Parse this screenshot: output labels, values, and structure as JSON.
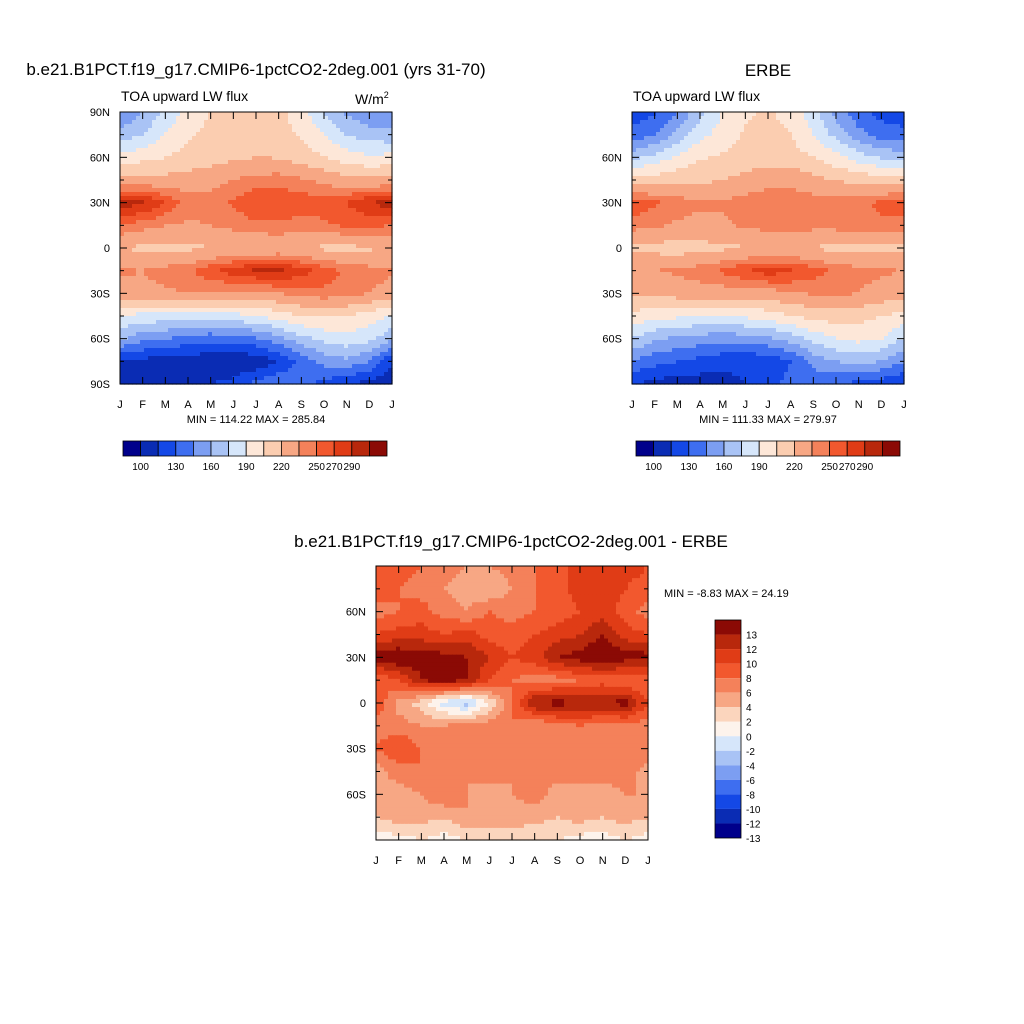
{
  "colors": {
    "abs_palette": [
      "#00008b",
      "#0a2cb4",
      "#1448e6",
      "#3e6ef0",
      "#7c9ef2",
      "#a9c3f5",
      "#d6e6fa",
      "#fde7d8",
      "#fbcdb0",
      "#f7a784",
      "#f4815a",
      "#f2582e",
      "#e03c16",
      "#b8280c",
      "#8b0a05"
    ],
    "diff_palette": [
      "#00008b",
      "#0a2cb4",
      "#1448e6",
      "#3e6ef0",
      "#7c9ef2",
      "#a9c3f5",
      "#d6e6fa",
      "#fdf3ec",
      "#fbd5bd",
      "#f7a784",
      "#f4815a",
      "#f2582e",
      "#e03c16",
      "#b8280c",
      "#8b0a05"
    ]
  },
  "panels": {
    "model": {
      "title": "b.e21.B1PCT.f19_g17.CMIP6-1pctCO2-2deg.001 (yrs 31-70)",
      "left_label": "TOA upward LW flux",
      "units_main": "W/m",
      "units_sup": "2",
      "stats": "MIN = 114.22 MAX = 285.84"
    },
    "obs": {
      "title": "ERBE",
      "left_label": "TOA upward LW flux",
      "stats": "MIN = 111.33 MAX = 279.97"
    },
    "diff": {
      "title": "b.e21.B1PCT.f19_g17.CMIP6-1pctCO2-2deg.001 - ERBE",
      "stats": "MIN =  -8.83 MAX =  24.19"
    }
  },
  "chart_data": [
    {
      "type": "heatmap",
      "title": "b.e21.B1PCT.f19_g17.CMIP6-1pctCO2-2deg.001 (yrs 31-70)",
      "variable": "TOA upward LW flux",
      "units": "W/m2",
      "x_ticks": [
        "J",
        "F",
        "M",
        "A",
        "M",
        "J",
        "J",
        "A",
        "S",
        "O",
        "N",
        "D",
        "J"
      ],
      "y_ticks": [
        "90N",
        "60N",
        "30N",
        "0",
        "30S",
        "60S",
        "90S"
      ],
      "ylim": [
        -90,
        90
      ],
      "min": 114.22,
      "max": 285.84,
      "colorbar_levels": [
        100,
        115,
        130,
        145,
        160,
        175,
        190,
        205,
        220,
        235,
        250,
        260,
        270,
        280,
        290
      ],
      "colorbar_labels": [
        "100",
        "130",
        "160",
        "190",
        "220",
        "250",
        "270",
        "290"
      ],
      "field": {
        "lat": [
          -90,
          -75,
          -60,
          -45,
          -30,
          -15,
          0,
          15,
          30,
          45,
          60,
          75,
          90
        ],
        "rows": [
          [
            120,
            116,
            120,
            125,
            130,
            135,
            150,
            158,
            150,
            140,
            130,
            125,
            120
          ],
          [
            130,
            125,
            122,
            120,
            118,
            116,
            118,
            130,
            150,
            165,
            172,
            160,
            130
          ],
          [
            178,
            165,
            160,
            155,
            150,
            152,
            158,
            170,
            185,
            195,
            200,
            195,
            178
          ],
          [
            205,
            200,
            200,
            198,
            198,
            200,
            205,
            212,
            220,
            222,
            220,
            212,
            205
          ],
          [
            245,
            246,
            248,
            250,
            248,
            246,
            246,
            250,
            255,
            258,
            255,
            250,
            245
          ],
          [
            252,
            250,
            255,
            258,
            268,
            276,
            282,
            284,
            275,
            265,
            258,
            254,
            252
          ],
          [
            235,
            232,
            230,
            232,
            234,
            236,
            236,
            238,
            236,
            232,
            232,
            233,
            235
          ],
          [
            260,
            255,
            250,
            248,
            250,
            254,
            258,
            258,
            256,
            258,
            262,
            262,
            260
          ],
          [
            286,
            282,
            270,
            255,
            255,
            262,
            268,
            268,
            266,
            265,
            270,
            280,
            286
          ],
          [
            238,
            240,
            240,
            242,
            245,
            250,
            255,
            256,
            252,
            246,
            240,
            238,
            238
          ],
          [
            210,
            215,
            220,
            225,
            228,
            232,
            235,
            234,
            228,
            220,
            212,
            208,
            210
          ],
          [
            180,
            190,
            205,
            218,
            225,
            230,
            230,
            228,
            218,
            205,
            190,
            182,
            180
          ],
          [
            160,
            175,
            195,
            210,
            220,
            228,
            230,
            225,
            210,
            190,
            172,
            162,
            160
          ]
        ]
      }
    },
    {
      "type": "heatmap",
      "title": "ERBE",
      "variable": "TOA upward LW flux",
      "units": "W/m2",
      "x_ticks": [
        "J",
        "F",
        "M",
        "A",
        "M",
        "J",
        "J",
        "A",
        "S",
        "O",
        "N",
        "D",
        "J"
      ],
      "y_ticks": [
        "60N",
        "30N",
        "0",
        "30S",
        "60S"
      ],
      "ylim": [
        -90,
        90
      ],
      "min": 111.33,
      "max": 279.97,
      "colorbar_levels": [
        100,
        115,
        130,
        145,
        160,
        175,
        190,
        205,
        220,
        235,
        250,
        260,
        270,
        280,
        290
      ],
      "colorbar_labels": [
        "100",
        "130",
        "160",
        "190",
        "220",
        "250",
        "270",
        "290"
      ],
      "field": {
        "lat": [
          -90,
          -75,
          -60,
          -45,
          -30,
          -15,
          0,
          15,
          30,
          45,
          60,
          75,
          90
        ],
        "rows": [
          [
            130,
            125,
            122,
            122,
            125,
            130,
            140,
            150,
            150,
            145,
            140,
            135,
            130
          ],
          [
            160,
            150,
            145,
            140,
            135,
            132,
            135,
            145,
            165,
            175,
            180,
            175,
            160
          ],
          [
            190,
            178,
            172,
            168,
            165,
            168,
            172,
            182,
            195,
            205,
            210,
            205,
            190
          ],
          [
            215,
            210,
            208,
            206,
            206,
            208,
            212,
            220,
            225,
            228,
            226,
            220,
            215
          ],
          [
            240,
            240,
            242,
            244,
            244,
            244,
            245,
            248,
            252,
            252,
            250,
            245,
            240
          ],
          [
            250,
            250,
            252,
            256,
            262,
            270,
            275,
            272,
            265,
            258,
            254,
            252,
            250
          ],
          [
            232,
            230,
            228,
            230,
            232,
            234,
            235,
            236,
            234,
            230,
            230,
            231,
            232
          ],
          [
            255,
            252,
            248,
            246,
            248,
            252,
            255,
            256,
            254,
            255,
            258,
            258,
            255
          ],
          [
            268,
            262,
            256,
            252,
            252,
            255,
            258,
            258,
            256,
            256,
            258,
            262,
            268
          ],
          [
            228,
            228,
            230,
            232,
            235,
            240,
            245,
            246,
            240,
            234,
            230,
            228,
            228
          ],
          [
            185,
            195,
            208,
            218,
            222,
            226,
            228,
            226,
            220,
            210,
            198,
            188,
            185
          ],
          [
            150,
            160,
            180,
            200,
            212,
            222,
            225,
            220,
            205,
            185,
            165,
            152,
            150
          ],
          [
            135,
            142,
            160,
            185,
            205,
            218,
            222,
            215,
            195,
            170,
            150,
            140,
            135
          ]
        ]
      }
    },
    {
      "type": "heatmap",
      "title": "b.e21.B1PCT.f19_g17.CMIP6-1pctCO2-2deg.001 - ERBE",
      "units": "W/m2",
      "x_ticks": [
        "J",
        "F",
        "M",
        "A",
        "M",
        "J",
        "J",
        "A",
        "S",
        "O",
        "N",
        "D",
        "J"
      ],
      "y_ticks": [
        "60N",
        "30N",
        "0",
        "30S",
        "60S"
      ],
      "ylim": [
        -90,
        90
      ],
      "min": -8.83,
      "max": 24.19,
      "colorbar_levels": [
        -14,
        -13,
        -12,
        -10,
        -8,
        -6,
        -4,
        -2,
        0,
        2,
        4,
        6,
        8,
        10,
        12,
        13,
        14
      ],
      "colorbar_labels": [
        "13",
        "12",
        "10",
        "8",
        "6",
        "4",
        "2",
        "0",
        "-2",
        "-4",
        "-6",
        "-8",
        "-10",
        "-12",
        "-13"
      ],
      "field": {
        "lat": [
          -90,
          -75,
          -60,
          -45,
          -30,
          -15,
          0,
          15,
          30,
          45,
          60,
          75,
          90
        ],
        "rows": [
          [
            -1,
            -1,
            0,
            -1,
            0,
            1,
            1,
            0,
            0,
            -1,
            -1,
            0,
            -1
          ],
          [
            2,
            3,
            3,
            2,
            4,
            3,
            3,
            3,
            2,
            3,
            2,
            3,
            2
          ],
          [
            4,
            3,
            4,
            6,
            4,
            3,
            4,
            5,
            3,
            4,
            3,
            4,
            4
          ],
          [
            3,
            5,
            6,
            5,
            4,
            5,
            4,
            5,
            5,
            4,
            5,
            5,
            3
          ],
          [
            6,
            8,
            6,
            5,
            6,
            5,
            5,
            5,
            6,
            5,
            6,
            5,
            6
          ],
          [
            5,
            5,
            4,
            4,
            5,
            5,
            6,
            4,
            5,
            6,
            5,
            5,
            5
          ],
          [
            8,
            3,
            1,
            -3,
            -5,
            0,
            6,
            12,
            13,
            12,
            12,
            13,
            8
          ],
          [
            6,
            8,
            12,
            13,
            12,
            8,
            6,
            5,
            5,
            6,
            7,
            6,
            6
          ],
          [
            13,
            14,
            13,
            13,
            12,
            10,
            8,
            9,
            12,
            13,
            14,
            13,
            13
          ],
          [
            8,
            9,
            9,
            8,
            9,
            7,
            7,
            8,
            9,
            10,
            12,
            9,
            8
          ],
          [
            5,
            6,
            7,
            5,
            4,
            6,
            5,
            6,
            7,
            8,
            9,
            7,
            5
          ],
          [
            7,
            6,
            5,
            4,
            3,
            2,
            4,
            6,
            7,
            9,
            10,
            8,
            7
          ],
          [
            8,
            7,
            6,
            5,
            4,
            4,
            5,
            6,
            7,
            9,
            10,
            9,
            8
          ]
        ]
      }
    }
  ]
}
